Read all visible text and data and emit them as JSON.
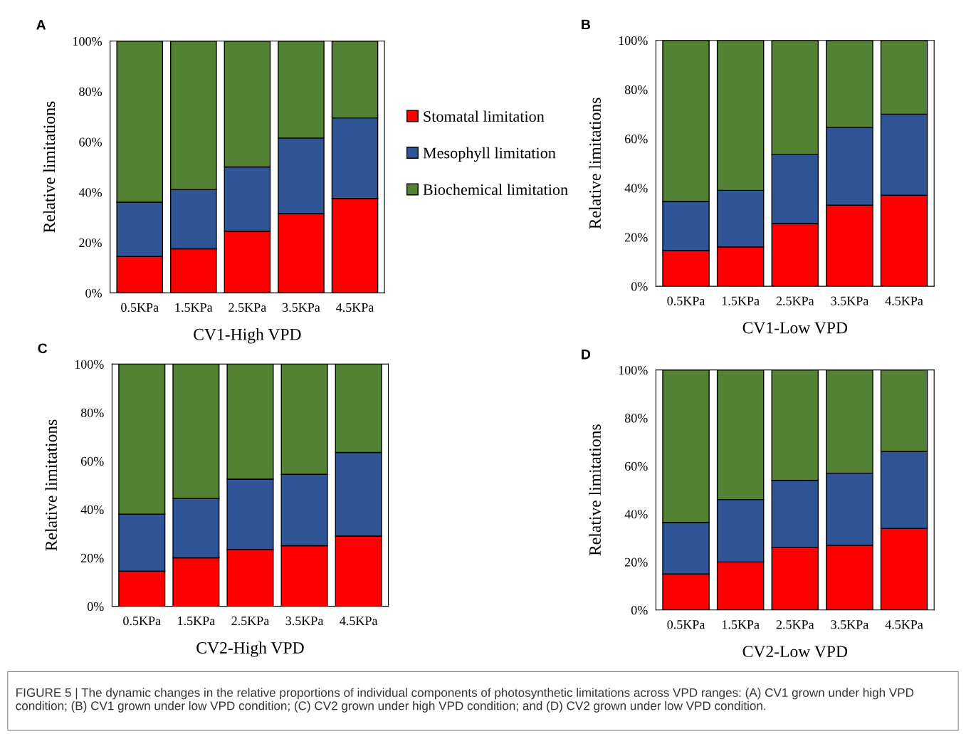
{
  "chart_data": [
    {
      "type": "bar",
      "stacked": true,
      "title": "A",
      "xlabel": "CV1-High VPD",
      "ylabel": "Relative limitations",
      "categories": [
        "0.5KPa",
        "1.5KPa",
        "2.5KPa",
        "3.5KPa",
        "4.5KPa"
      ],
      "ylim": [
        0,
        100
      ],
      "yticks": [
        {
          "value": 0,
          "label": "0%"
        },
        {
          "value": 20,
          "label": "20%"
        },
        {
          "value": 40,
          "label": "40%"
        },
        {
          "value": 60,
          "label": "60%"
        },
        {
          "value": 80,
          "label": "80%"
        },
        {
          "value": 100,
          "label": "100%"
        }
      ],
      "legend": "right",
      "grid": false,
      "series": [
        {
          "name": "Stomatal limitation",
          "color": "#ff0000",
          "values": [
            14.5,
            17.5,
            24.5,
            31.5,
            37.5
          ]
        },
        {
          "name": "Mesophyll limitation",
          "color": "#2f5597",
          "values": [
            21.5,
            23.5,
            25.5,
            30,
            32
          ]
        },
        {
          "name": "Biochemical limitation",
          "color": "#548235",
          "values": [
            64,
            59,
            50,
            38.5,
            30.5
          ]
        }
      ]
    },
    {
      "type": "bar",
      "stacked": true,
      "title": "B",
      "xlabel": "CV1-Low VPD",
      "ylabel": "Relative limitations",
      "categories": [
        "0.5KPa",
        "1.5KPa",
        "2.5KPa",
        "3.5KPa",
        "4.5KPa"
      ],
      "ylim": [
        0,
        100
      ],
      "yticks": [
        {
          "value": 0,
          "label": "0%"
        },
        {
          "value": 20,
          "label": "20%"
        },
        {
          "value": 40,
          "label": "40%"
        },
        {
          "value": 60,
          "label": "60%"
        },
        {
          "value": 80,
          "label": "80%"
        },
        {
          "value": 100,
          "label": "100%"
        }
      ],
      "legend": false,
      "grid": false,
      "series": [
        {
          "color": "#ff0000",
          "values": [
            14.5,
            16,
            25.5,
            33,
            37
          ]
        },
        {
          "color": "#2f5597",
          "values": [
            20,
            23,
            28,
            31.5,
            33
          ]
        },
        {
          "color": "#548235",
          "values": [
            65.5,
            61,
            46.5,
            35.5,
            30
          ]
        }
      ]
    },
    {
      "type": "bar",
      "stacked": true,
      "title": "C",
      "xlabel": "CV2-High VPD",
      "ylabel": "Relative limitations",
      "categories": [
        "0.5KPa",
        "1.5KPa",
        "2.5KPa",
        "3.5KPa",
        "4.5KPa"
      ],
      "ylim": [
        0,
        100
      ],
      "yticks": [
        {
          "value": 0,
          "label": "0%"
        },
        {
          "value": 20,
          "label": "20%"
        },
        {
          "value": 40,
          "label": "40%"
        },
        {
          "value": 60,
          "label": "60%"
        },
        {
          "value": 80,
          "label": "80%"
        },
        {
          "value": 100,
          "label": "100%"
        }
      ],
      "legend": false,
      "grid": false,
      "series": [
        {
          "color": "#ff0000",
          "values": [
            14.5,
            20,
            23.5,
            25,
            29
          ]
        },
        {
          "color": "#2f5597",
          "values": [
            23.5,
            24.5,
            29,
            29.5,
            34.5
          ]
        },
        {
          "color": "#548235",
          "values": [
            62,
            55.5,
            47.5,
            45.5,
            36.5
          ]
        }
      ]
    },
    {
      "type": "bar",
      "stacked": true,
      "title": "D",
      "xlabel": "CV2-Low VPD",
      "ylabel": "Relative limitations",
      "categories": [
        "0.5KPa",
        "1.5KPa",
        "2.5KPa",
        "3.5KPa",
        "4.5KPa"
      ],
      "ylim": [
        0,
        100
      ],
      "yticks": [
        {
          "value": 0,
          "label": "0%"
        },
        {
          "value": 20,
          "label": "20%"
        },
        {
          "value": 40,
          "label": "40%"
        },
        {
          "value": 60,
          "label": "60%"
        },
        {
          "value": 80,
          "label": "80%"
        },
        {
          "value": 100,
          "label": "100%"
        }
      ],
      "legend": false,
      "grid": false,
      "series": [
        {
          "color": "#ff0000",
          "values": [
            15,
            20,
            26,
            27,
            34
          ]
        },
        {
          "color": "#2f5597",
          "values": [
            21.5,
            26,
            28,
            30,
            32
          ]
        },
        {
          "color": "#548235",
          "values": [
            63.5,
            54,
            46,
            43,
            34
          ]
        }
      ],
      "annotations": [
        "FIGURE 5 | The dynamic changes in the relative proportions of individual components of photosynthetic limitations across VPD ranges: (A) CV1 grown under high VPD condition; (B) CV1 grown under low VPD condition; (C) CV2 grown under high VPD condition; and (D) CV2 grown under low VPD condition."
      ]
    }
  ]
}
